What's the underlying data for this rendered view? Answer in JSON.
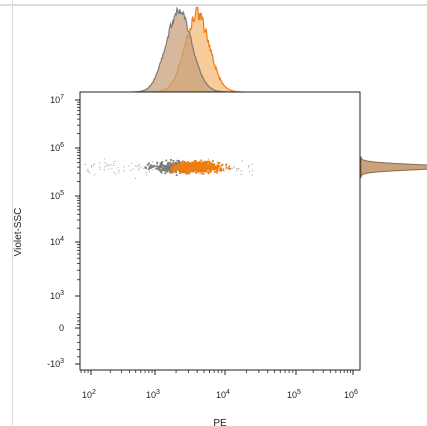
{
  "chart_data": {
    "type": "scatter",
    "title": "",
    "xlabel": "PE",
    "ylabel": "Violet-SSC",
    "x_scale": "biexponential",
    "y_scale": "biexponential",
    "xlim": [
      50,
      1000000
    ],
    "ylim": [
      -1000,
      10000000
    ],
    "x_ticks": [
      {
        "base": "10",
        "exp": "2",
        "value": 100
      },
      {
        "base": "10",
        "exp": "3",
        "value": 1000
      },
      {
        "base": "10",
        "exp": "4",
        "value": 10000
      },
      {
        "base": "10",
        "exp": "5",
        "value": 100000
      },
      {
        "base": "10",
        "exp": "6",
        "value": 1000000
      }
    ],
    "y_ticks": [
      {
        "base": "10",
        "exp": "7",
        "value": 10000000
      },
      {
        "base": "10",
        "exp": "6",
        "value": 1000000
      },
      {
        "base": "10",
        "exp": "5",
        "value": 100000
      },
      {
        "base": "10",
        "exp": "4",
        "value": 10000
      },
      {
        "base": "10",
        "exp": "3",
        "value": 1000
      },
      {
        "base": "0",
        "exp": "",
        "value": 0
      },
      {
        "base": "-10",
        "exp": "3",
        "value": -1000
      }
    ],
    "grid": false,
    "legend": "none",
    "series": [
      {
        "color": "#7a7a7a",
        "hist_fill": "#cfcfcf",
        "x_center": 2200,
        "x_spread_log10": 0.17,
        "y_center": 400000,
        "y_spread_log10": 0.05
      },
      {
        "color": "#f07d12",
        "hist_fill": "#f6c58f",
        "x_center": 4000,
        "x_spread_log10": 0.16,
        "y_center": 400000,
        "y_spread_log10": 0.05
      }
    ],
    "overlap_fill": "#c8a27c",
    "marginal_histograms": [
      "top-x",
      "right-y"
    ]
  }
}
